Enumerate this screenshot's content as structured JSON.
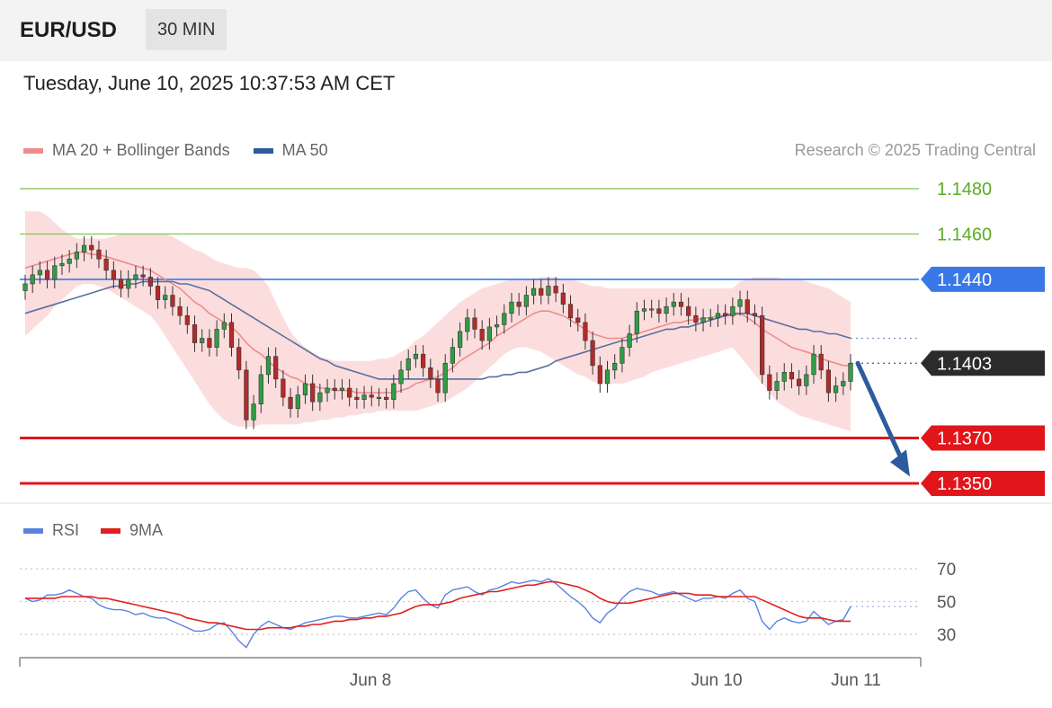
{
  "header": {
    "pair": "EUR/USD",
    "timeframe": "30 MIN"
  },
  "datetime": "Tuesday, June 10, 2025 10:37:53 AM CET",
  "legend_main": [
    {
      "label": "MA 20 + Bollinger Bands",
      "color": "#f08c8c"
    },
    {
      "label": "MA 50",
      "color": "#2f5a9e"
    }
  ],
  "credit": "Research © 2025 Trading Central",
  "legend_rsi": [
    {
      "label": "RSI",
      "color": "#5b82e0"
    },
    {
      "label": "9MA",
      "color": "#e01f1f"
    }
  ],
  "colors": {
    "resistance": "#7cc44a",
    "support": "#e0161b",
    "pivot": "#3a78e8",
    "current": "#2b2b2b",
    "arrow": "#2d5b9e"
  },
  "chart_data": [
    {
      "type": "line",
      "xlabel": "",
      "ylabel": "",
      "ylim": [
        1.134,
        1.1495
      ],
      "x_ticks": [
        "Jun 8",
        "Jun 10",
        "Jun 11"
      ],
      "levels": [
        {
          "value": 1.148,
          "label": "1.1480",
          "kind": "resistance"
        },
        {
          "value": 1.146,
          "label": "1.1460",
          "kind": "resistance"
        },
        {
          "value": 1.144,
          "label": "1.1440",
          "kind": "pivot"
        },
        {
          "value": 1.1403,
          "label": "1.1403",
          "kind": "current"
        },
        {
          "value": 1.137,
          "label": "1.1370",
          "kind": "support"
        },
        {
          "value": 1.135,
          "label": "1.1350",
          "kind": "support"
        }
      ],
      "close": [
        1.1438,
        1.1442,
        1.1444,
        1.144,
        1.1446,
        1.1447,
        1.1449,
        1.1452,
        1.1455,
        1.1453,
        1.1449,
        1.1444,
        1.144,
        1.1436,
        1.144,
        1.1442,
        1.1441,
        1.1437,
        1.1431,
        1.1433,
        1.1428,
        1.1424,
        1.142,
        1.1412,
        1.1414,
        1.141,
        1.1418,
        1.1421,
        1.141,
        1.14,
        1.1378,
        1.1385,
        1.1398,
        1.1406,
        1.1396,
        1.1388,
        1.1383,
        1.1389,
        1.1394,
        1.1386,
        1.139,
        1.1392,
        1.1391,
        1.1392,
        1.1388,
        1.1387,
        1.1389,
        1.1388,
        1.1388,
        1.1387,
        1.1394,
        1.14,
        1.1405,
        1.1407,
        1.1401,
        1.1396,
        1.139,
        1.1403,
        1.141,
        1.1417,
        1.1423,
        1.1418,
        1.1413,
        1.1419,
        1.142,
        1.1425,
        1.143,
        1.1428,
        1.1433,
        1.1436,
        1.1433,
        1.1437,
        1.1434,
        1.1429,
        1.1423,
        1.1421,
        1.1413,
        1.1402,
        1.1394,
        1.14,
        1.1403,
        1.141,
        1.1416,
        1.1426,
        1.1427,
        1.1427,
        1.1425,
        1.1428,
        1.143,
        1.1428,
        1.1424,
        1.1421,
        1.1423,
        1.1423,
        1.1425,
        1.1424,
        1.1428,
        1.1431,
        1.1425,
        1.1424,
        1.1398,
        1.1391,
        1.1395,
        1.1399,
        1.1396,
        1.1393,
        1.1398,
        1.1407,
        1.14,
        1.139,
        1.1393,
        1.1395,
        1.1403
      ],
      "ma20": [
        1.1445,
        1.1446,
        1.1447,
        1.1448,
        1.1449,
        1.145,
        1.1451,
        1.1452,
        1.1452,
        1.1451,
        1.1451,
        1.145,
        1.1449,
        1.1448,
        1.1447,
        1.1446,
        1.1445,
        1.1444,
        1.1442,
        1.144,
        1.1438,
        1.1436,
        1.1433,
        1.143,
        1.1428,
        1.1425,
        1.1423,
        1.1421,
        1.1419,
        1.1416,
        1.1412,
        1.1409,
        1.1407,
        1.1404,
        1.1401,
        1.1399,
        1.1397,
        1.1396,
        1.1394,
        1.1393,
        1.1392,
        1.1392,
        1.1391,
        1.1391,
        1.1391,
        1.139,
        1.139,
        1.139,
        1.139,
        1.139,
        1.139,
        1.1391,
        1.1392,
        1.1394,
        1.1395,
        1.1396,
        1.1397,
        1.1399,
        1.1401,
        1.1404,
        1.1406,
        1.1408,
        1.141,
        1.1412,
        1.1415,
        1.1417,
        1.1419,
        1.1421,
        1.1423,
        1.1425,
        1.1426,
        1.1426,
        1.1425,
        1.1424,
        1.1422,
        1.142,
        1.1418,
        1.1416,
        1.1415,
        1.1414,
        1.1414,
        1.1414,
        1.1415,
        1.1416,
        1.1417,
        1.1418,
        1.1419,
        1.142,
        1.1421,
        1.1421,
        1.1422,
        1.1422,
        1.1423,
        1.1423,
        1.1424,
        1.1424,
        1.1424,
        1.1425,
        1.1423,
        1.1421,
        1.1418,
        1.1416,
        1.1414,
        1.1412,
        1.141,
        1.1409,
        1.1408,
        1.1407,
        1.1405,
        1.1404,
        1.1403,
        1.1402,
        1.1402
      ],
      "bb_upper": [
        1.147,
        1.147,
        1.147,
        1.1468,
        1.1465,
        1.1462,
        1.146,
        1.1458,
        1.1458,
        1.1458,
        1.1458,
        1.1458,
        1.1459,
        1.146,
        1.146,
        1.146,
        1.146,
        1.146,
        1.146,
        1.146,
        1.1459,
        1.1457,
        1.1455,
        1.1453,
        1.1452,
        1.145,
        1.1448,
        1.1447,
        1.1446,
        1.1445,
        1.1445,
        1.1444,
        1.1441,
        1.1437,
        1.143,
        1.1423,
        1.1417,
        1.1413,
        1.141,
        1.1408,
        1.1406,
        1.1405,
        1.1404,
        1.1404,
        1.1404,
        1.1404,
        1.1404,
        1.1404,
        1.1405,
        1.1405,
        1.1406,
        1.1408,
        1.141,
        1.1413,
        1.1415,
        1.1418,
        1.1421,
        1.1424,
        1.1427,
        1.143,
        1.1432,
        1.1434,
        1.1436,
        1.1437,
        1.1438,
        1.1439,
        1.144,
        1.144,
        1.144,
        1.144,
        1.1441,
        1.1441,
        1.1441,
        1.144,
        1.144,
        1.1439,
        1.1438,
        1.1437,
        1.1437,
        1.1436,
        1.1436,
        1.1436,
        1.1436,
        1.1436,
        1.1436,
        1.1436,
        1.1436,
        1.1436,
        1.1436,
        1.1436,
        1.1436,
        1.1436,
        1.1436,
        1.1436,
        1.1436,
        1.1436,
        1.1436,
        1.1439,
        1.144,
        1.1441,
        1.1441,
        1.1441,
        1.1441,
        1.144,
        1.144,
        1.144,
        1.1439,
        1.1438,
        1.1437,
        1.1436,
        1.1434,
        1.1432,
        1.143
      ],
      "bb_lower": [
        1.1415,
        1.1418,
        1.1421,
        1.1424,
        1.1428,
        1.1431,
        1.1434,
        1.1437,
        1.1438,
        1.1438,
        1.1437,
        1.1436,
        1.1434,
        1.1432,
        1.143,
        1.1428,
        1.1426,
        1.1424,
        1.142,
        1.1415,
        1.141,
        1.1405,
        1.14,
        1.1395,
        1.139,
        1.1385,
        1.1381,
        1.1378,
        1.1376,
        1.1375,
        1.1375,
        1.1375,
        1.1376,
        1.1376,
        1.1376,
        1.1376,
        1.1376,
        1.1376,
        1.1377,
        1.1377,
        1.1378,
        1.1378,
        1.1379,
        1.1379,
        1.138,
        1.138,
        1.1381,
        1.1381,
        1.1382,
        1.1382,
        1.1382,
        1.1382,
        1.1382,
        1.1382,
        1.1383,
        1.1384,
        1.1385,
        1.1386,
        1.1388,
        1.139,
        1.1392,
        1.1395,
        1.1398,
        1.1401,
        1.1404,
        1.1407,
        1.1409,
        1.141,
        1.141,
        1.1409,
        1.1408,
        1.1406,
        1.1404,
        1.1402,
        1.14,
        1.1398,
        1.1397,
        1.1395,
        1.1394,
        1.1394,
        1.1394,
        1.1394,
        1.1395,
        1.1396,
        1.1397,
        1.1399,
        1.14,
        1.1401,
        1.1402,
        1.1403,
        1.1404,
        1.1405,
        1.1406,
        1.1407,
        1.1408,
        1.1409,
        1.141,
        1.1406,
        1.1402,
        1.1398,
        1.1394,
        1.139,
        1.1386,
        1.1384,
        1.1382,
        1.138,
        1.1379,
        1.1378,
        1.1377,
        1.1376,
        1.1375,
        1.1374,
        1.1373
      ],
      "ma50": [
        1.1425,
        1.1426,
        1.1427,
        1.1428,
        1.1429,
        1.143,
        1.1431,
        1.1432,
        1.1433,
        1.1434,
        1.1435,
        1.1436,
        1.1437,
        1.1437,
        1.1438,
        1.1438,
        1.1439,
        1.1439,
        1.1439,
        1.1439,
        1.1439,
        1.1438,
        1.1438,
        1.1437,
        1.1436,
        1.1435,
        1.1433,
        1.1431,
        1.1429,
        1.1427,
        1.1425,
        1.1423,
        1.1421,
        1.1419,
        1.1417,
        1.1415,
        1.1413,
        1.1411,
        1.1409,
        1.1407,
        1.1405,
        1.1404,
        1.1402,
        1.1401,
        1.14,
        1.1399,
        1.1398,
        1.1397,
        1.1396,
        1.1396,
        1.1396,
        1.1396,
        1.1396,
        1.1396,
        1.1396,
        1.1396,
        1.1396,
        1.1396,
        1.1396,
        1.1396,
        1.1396,
        1.1396,
        1.1396,
        1.1397,
        1.1397,
        1.1398,
        1.1398,
        1.1399,
        1.1399,
        1.14,
        1.1401,
        1.1402,
        1.1404,
        1.1405,
        1.1406,
        1.1407,
        1.1408,
        1.1409,
        1.141,
        1.1411,
        1.1412,
        1.1413,
        1.1413,
        1.1414,
        1.1415,
        1.1416,
        1.1417,
        1.1418,
        1.1418,
        1.1419,
        1.1419,
        1.142,
        1.1421,
        1.1422,
        1.1423,
        1.1424,
        1.1425,
        1.1425,
        1.1425,
        1.1424,
        1.1423,
        1.1422,
        1.1421,
        1.142,
        1.1419,
        1.1418,
        1.1418,
        1.1417,
        1.1417,
        1.1416,
        1.1416,
        1.1415,
        1.1414
      ]
    },
    {
      "type": "line",
      "ylim": [
        20,
        80
      ],
      "y_ticks": [
        70,
        50,
        30
      ],
      "series": [
        {
          "name": "RSI",
          "values": [
            52,
            50,
            51,
            54,
            54,
            55,
            57,
            55,
            53,
            52,
            48,
            46,
            45,
            45,
            44,
            42,
            43,
            41,
            40,
            40,
            38,
            36,
            34,
            32,
            32,
            33,
            36,
            37,
            32,
            26,
            22,
            30,
            35,
            38,
            36,
            34,
            33,
            35,
            37,
            38,
            39,
            40,
            41,
            41,
            40,
            40,
            41,
            42,
            43,
            42,
            46,
            52,
            56,
            57,
            52,
            48,
            46,
            54,
            57,
            58,
            59,
            56,
            54,
            57,
            58,
            60,
            62,
            61,
            62,
            63,
            62,
            64,
            61,
            57,
            53,
            50,
            46,
            40,
            37,
            43,
            46,
            52,
            56,
            58,
            57,
            56,
            54,
            55,
            56,
            54,
            52,
            50,
            52,
            52,
            53,
            52,
            55,
            57,
            52,
            50,
            38,
            33,
            38,
            40,
            38,
            37,
            38,
            44,
            40,
            36,
            38,
            39,
            47
          ]
        },
        {
          "name": "9MA",
          "values": [
            52,
            52,
            52,
            52,
            52,
            53,
            53,
            53,
            53,
            53,
            52,
            52,
            51,
            50,
            49,
            48,
            47,
            46,
            45,
            44,
            43,
            42,
            40,
            39,
            38,
            37,
            37,
            36,
            35,
            34,
            33,
            33,
            33,
            34,
            34,
            34,
            34,
            35,
            35,
            36,
            36,
            37,
            38,
            38,
            39,
            39,
            40,
            40,
            41,
            41,
            42,
            43,
            45,
            47,
            48,
            48,
            48,
            49,
            50,
            52,
            53,
            54,
            55,
            56,
            56,
            57,
            58,
            59,
            60,
            60,
            61,
            62,
            62,
            61,
            60,
            59,
            57,
            55,
            52,
            50,
            49,
            49,
            49,
            50,
            51,
            52,
            53,
            54,
            55,
            55,
            55,
            54,
            54,
            54,
            53,
            53,
            53,
            53,
            53,
            53,
            51,
            49,
            47,
            45,
            43,
            41,
            40,
            40,
            40,
            39,
            38,
            38,
            38
          ]
        }
      ]
    }
  ]
}
